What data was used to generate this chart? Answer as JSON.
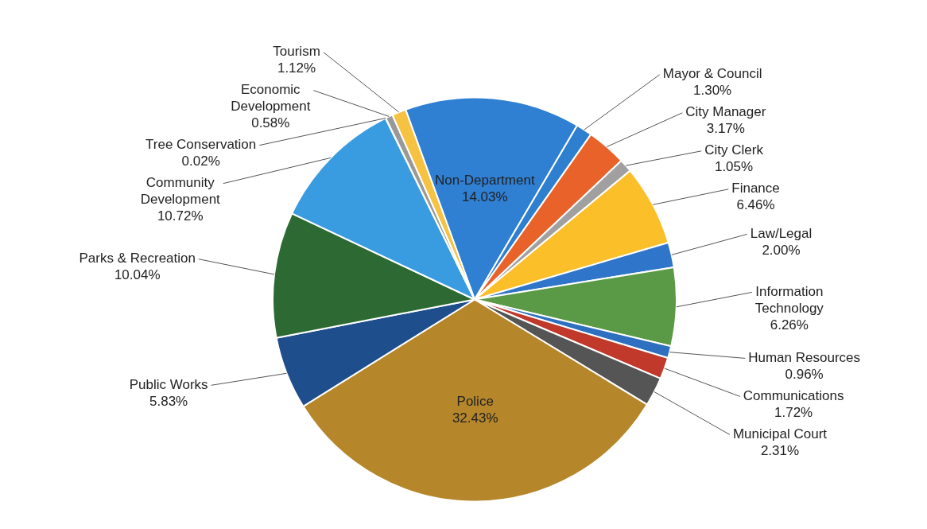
{
  "chart_data": {
    "type": "pie",
    "categories": [
      "Non-Department",
      "Mayor & Council",
      "City Manager",
      "City Clerk",
      "Finance",
      "Law/Legal",
      "Information Technology",
      "Human Resources",
      "Communications",
      "Municipal Court",
      "Police",
      "Public Works",
      "Parks & Recreation",
      "Community Development",
      "Tree Conservation",
      "Economic Development",
      "Tourism"
    ],
    "values": [
      14.03,
      1.3,
      3.17,
      1.05,
      6.46,
      2.0,
      6.26,
      0.96,
      1.72,
      2.31,
      32.43,
      5.83,
      10.04,
      10.72,
      0.02,
      0.58,
      1.12
    ],
    "value_labels": [
      "14.03%",
      "1.30%",
      "3.17%",
      "1.05%",
      "6.46%",
      "2.00%",
      "6.26%",
      "0.96%",
      "1.72%",
      "2.31%",
      "32.43%",
      "5.83%",
      "10.04%",
      "10.72%",
      "0.02%",
      "0.58%",
      "1.12%"
    ],
    "colors": [
      "#2f7fd3",
      "#2f7fd0",
      "#e8622a",
      "#a0a0a0",
      "#fbbf2a",
      "#2f75c9",
      "#5a9a46",
      "#2e6fc0",
      "#c0392b",
      "#555555",
      "#b5862a",
      "#1f4e8c",
      "#2d6a33",
      "#3a9ce0",
      "#777777",
      "#999999",
      "#f5c242"
    ],
    "legend": false
  }
}
